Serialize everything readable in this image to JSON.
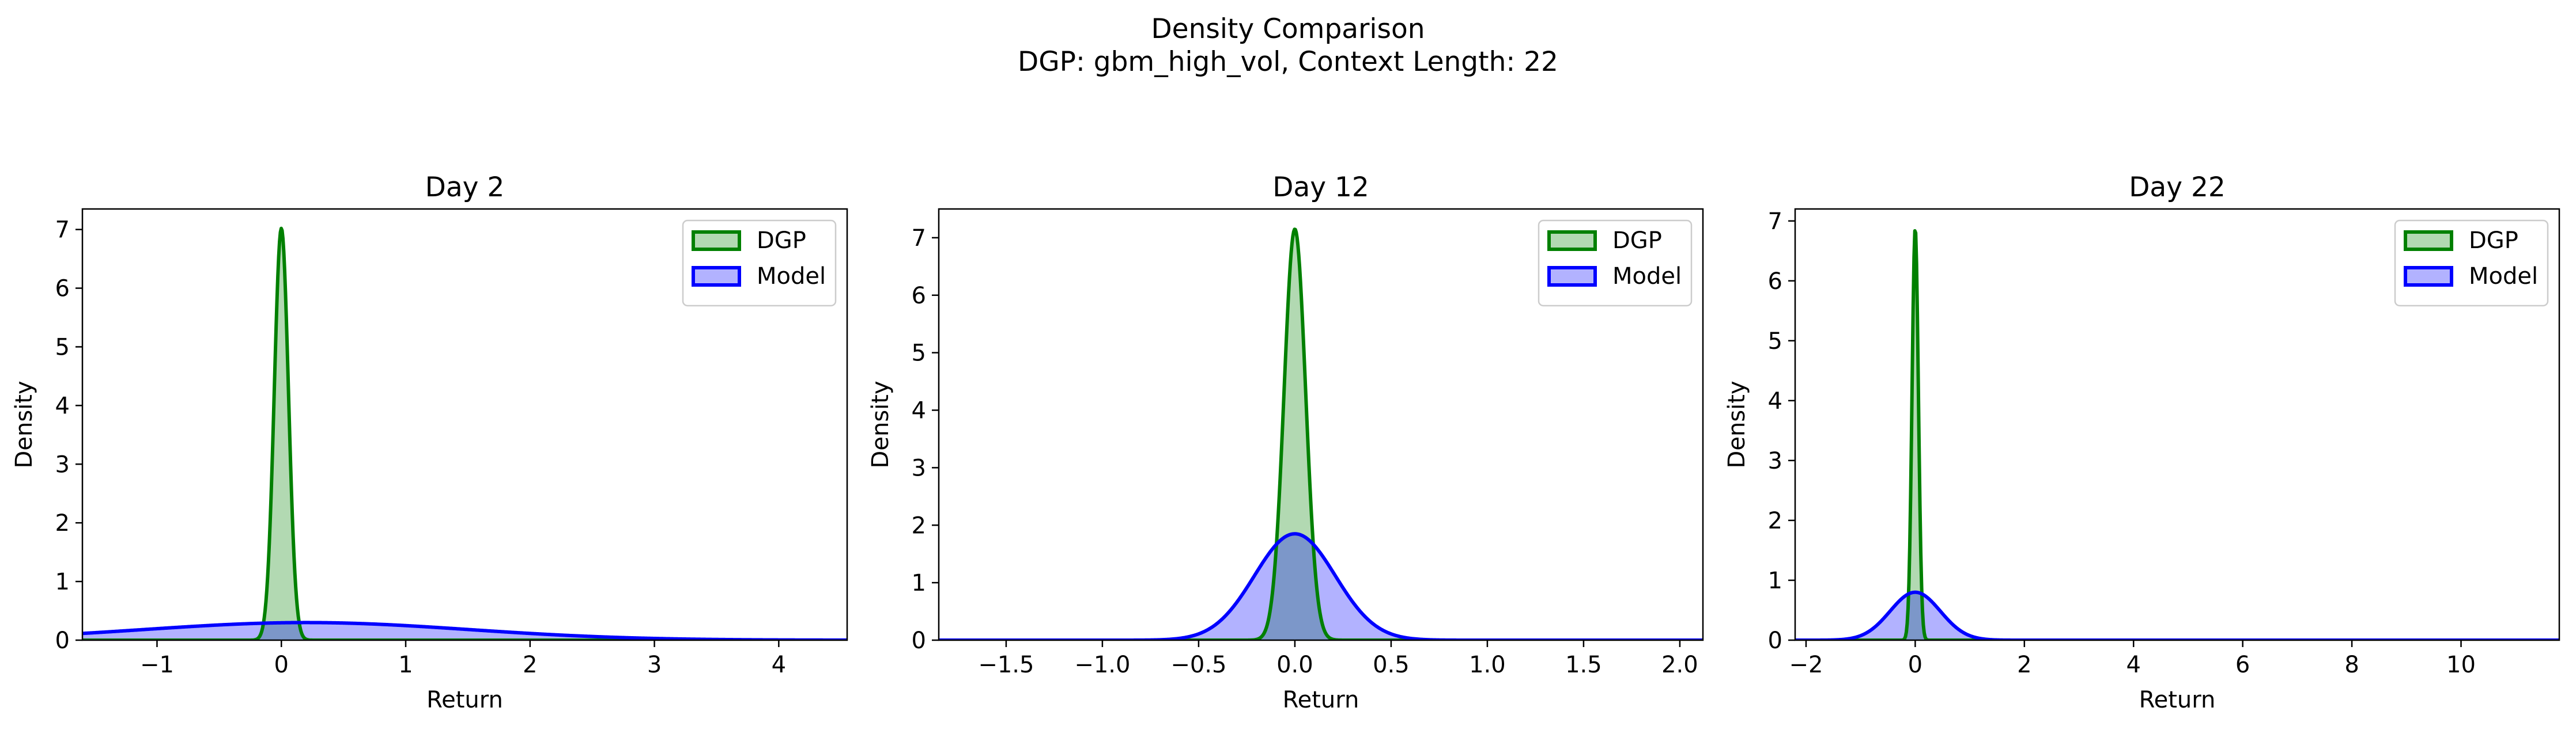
{
  "figure": {
    "title": "Density Comparison",
    "subtitle": "DGP: gbm_high_vol, Context Length: 22"
  },
  "colors": {
    "dgp_line": "#008000",
    "dgp_fill": "#008000",
    "model_line": "#0000ff",
    "model_fill": "#0000ff"
  },
  "chart_data": [
    {
      "type": "area",
      "title": "Day 2",
      "xlabel": "Return",
      "ylabel": "Density",
      "xlim": [
        -1.6,
        4.55
      ],
      "ylim": [
        0,
        7.35
      ],
      "xticks": [
        -1,
        0,
        1,
        2,
        3,
        4
      ],
      "yticks": [
        0,
        1,
        2,
        3,
        4,
        5,
        6,
        7
      ],
      "legend": "top-right",
      "series": [
        {
          "name": "DGP",
          "distribution": "gaussian",
          "mean": 0.0,
          "peak": 7.02,
          "sd": 0.057
        },
        {
          "name": "Model",
          "distribution": "gaussian",
          "mean": 0.2,
          "peak": 0.3,
          "sd": 1.3
        }
      ]
    },
    {
      "type": "area",
      "title": "Day 12",
      "xlabel": "Return",
      "ylabel": "Density",
      "xlim": [
        -1.85,
        2.12
      ],
      "ylim": [
        0,
        7.5
      ],
      "xticks": [
        -1.5,
        -1.0,
        -0.5,
        0.0,
        0.5,
        1.0,
        1.5,
        2.0
      ],
      "yticks": [
        0,
        1,
        2,
        3,
        4,
        5,
        6,
        7
      ],
      "legend": "top-right",
      "series": [
        {
          "name": "DGP",
          "distribution": "gaussian",
          "mean": 0.0,
          "peak": 7.15,
          "sd": 0.056
        },
        {
          "name": "Model",
          "distribution": "gaussian",
          "mean": 0.0,
          "peak": 1.85,
          "sd": 0.21
        }
      ]
    },
    {
      "type": "area",
      "title": "Day 22",
      "xlabel": "Return",
      "ylabel": "Density",
      "xlim": [
        -2.2,
        11.8
      ],
      "ylim": [
        0,
        7.2
      ],
      "xticks": [
        -2,
        0,
        2,
        4,
        6,
        8,
        10
      ],
      "yticks": [
        0,
        1,
        2,
        3,
        4,
        5,
        6,
        7
      ],
      "legend": "top-right",
      "series": [
        {
          "name": "DGP",
          "distribution": "gaussian",
          "mean": 0.0,
          "peak": 6.88,
          "sd": 0.058
        },
        {
          "name": "Model",
          "distribution": "gaussian",
          "mean": 0.0,
          "peak": 0.8,
          "sd": 0.46
        }
      ]
    }
  ]
}
